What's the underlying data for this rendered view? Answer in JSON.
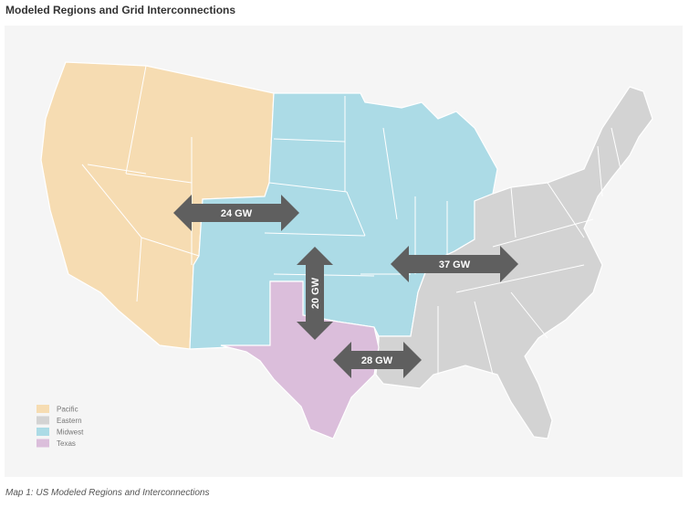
{
  "header": {
    "title": "Modeled Regions and Grid Interconnections"
  },
  "map": {
    "regions": [
      {
        "label": "Pacific",
        "color": "#f6dcb2"
      },
      {
        "label": "Eastern",
        "color": "#d3d3d3"
      },
      {
        "label": "Midwest",
        "color": "#acdbe6"
      },
      {
        "label": "Texas",
        "color": "#dbbedb"
      }
    ],
    "interconnections": [
      {
        "label": "24 GW"
      },
      {
        "label": "37 GW"
      },
      {
        "label": "20 GW"
      },
      {
        "label": "28 GW"
      }
    ]
  },
  "caption": "Map 1: US Modeled Regions and Interconnections"
}
